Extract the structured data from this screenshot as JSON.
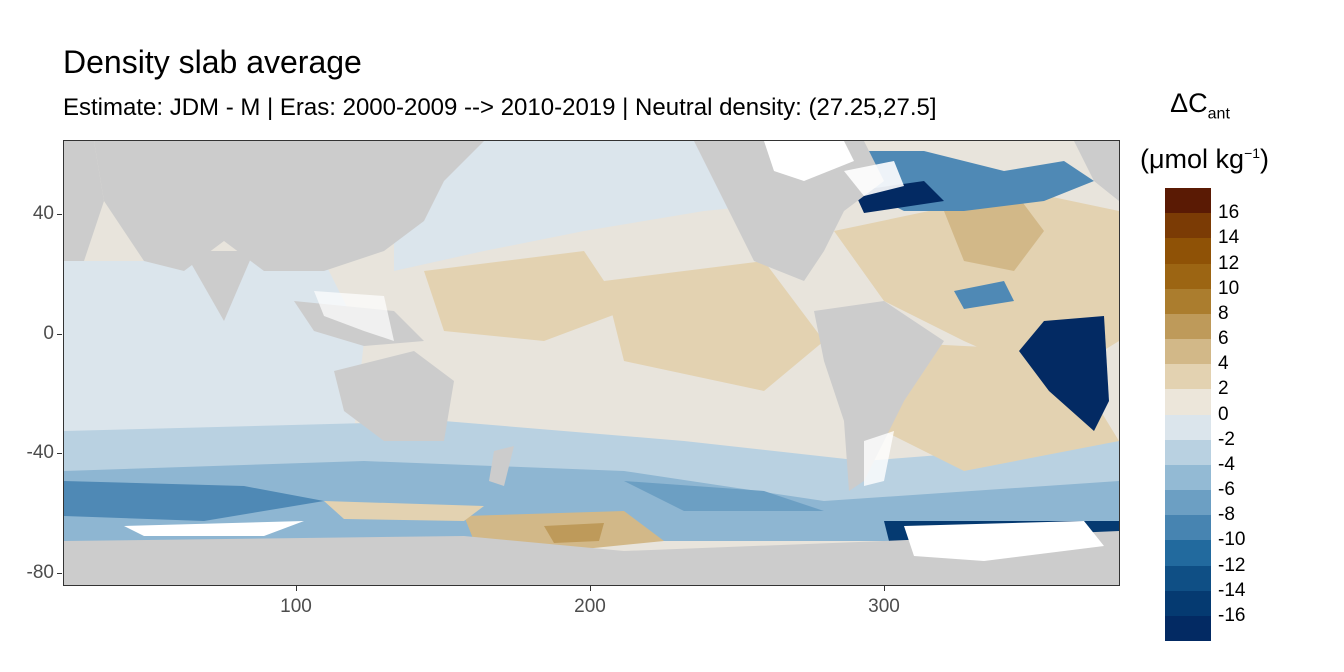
{
  "title": "Density slab average",
  "subtitle": "Estimate: JDM - M | Eras: 2000-2009 --> 2010-2019 | Neutral density: (27.25,27.5]",
  "legend": {
    "title_line1": "ΔC",
    "title_sub": "ant",
    "title_line2_pre": "(μmol kg",
    "title_sup": "−1",
    "title_line2_post": ")",
    "labels": [
      "16",
      "14",
      "12",
      "10",
      "8",
      "6",
      "4",
      "2",
      "0",
      "-2",
      "-4",
      "-6",
      "-8",
      "-10",
      "-12",
      "-14",
      "-16"
    ],
    "colors": [
      "#5a1a04",
      "#7b3b05",
      "#8f5206",
      "#9c6513",
      "#ab7d2e",
      "#be9a5a",
      "#d2b888",
      "#e3d2b1",
      "#ece6da",
      "#dbe5ec",
      "#b9d1e1",
      "#93bad4",
      "#6c9fc3",
      "#4784b1",
      "#226a9e",
      "#0f4f85",
      "#053a71",
      "#032a63"
    ]
  },
  "axes": {
    "y_ticks": [
      "40",
      "0",
      "-40",
      "-80"
    ],
    "x_ticks": [
      "100",
      "200",
      "300"
    ]
  },
  "map_colors": {
    "land": "#cccccc",
    "no_data": "#ffffff",
    "neutral": "#e8e4dc",
    "light_blue": "#dbe5ec",
    "mid_blue": "#b9d1e1",
    "blue": "#8eb6d2",
    "dark_blue": "#4f89b5",
    "deep_blue": "#032a63",
    "light_tan": "#e3d2b1",
    "tan": "#d2b888",
    "dark_tan": "#be9a5a"
  }
}
